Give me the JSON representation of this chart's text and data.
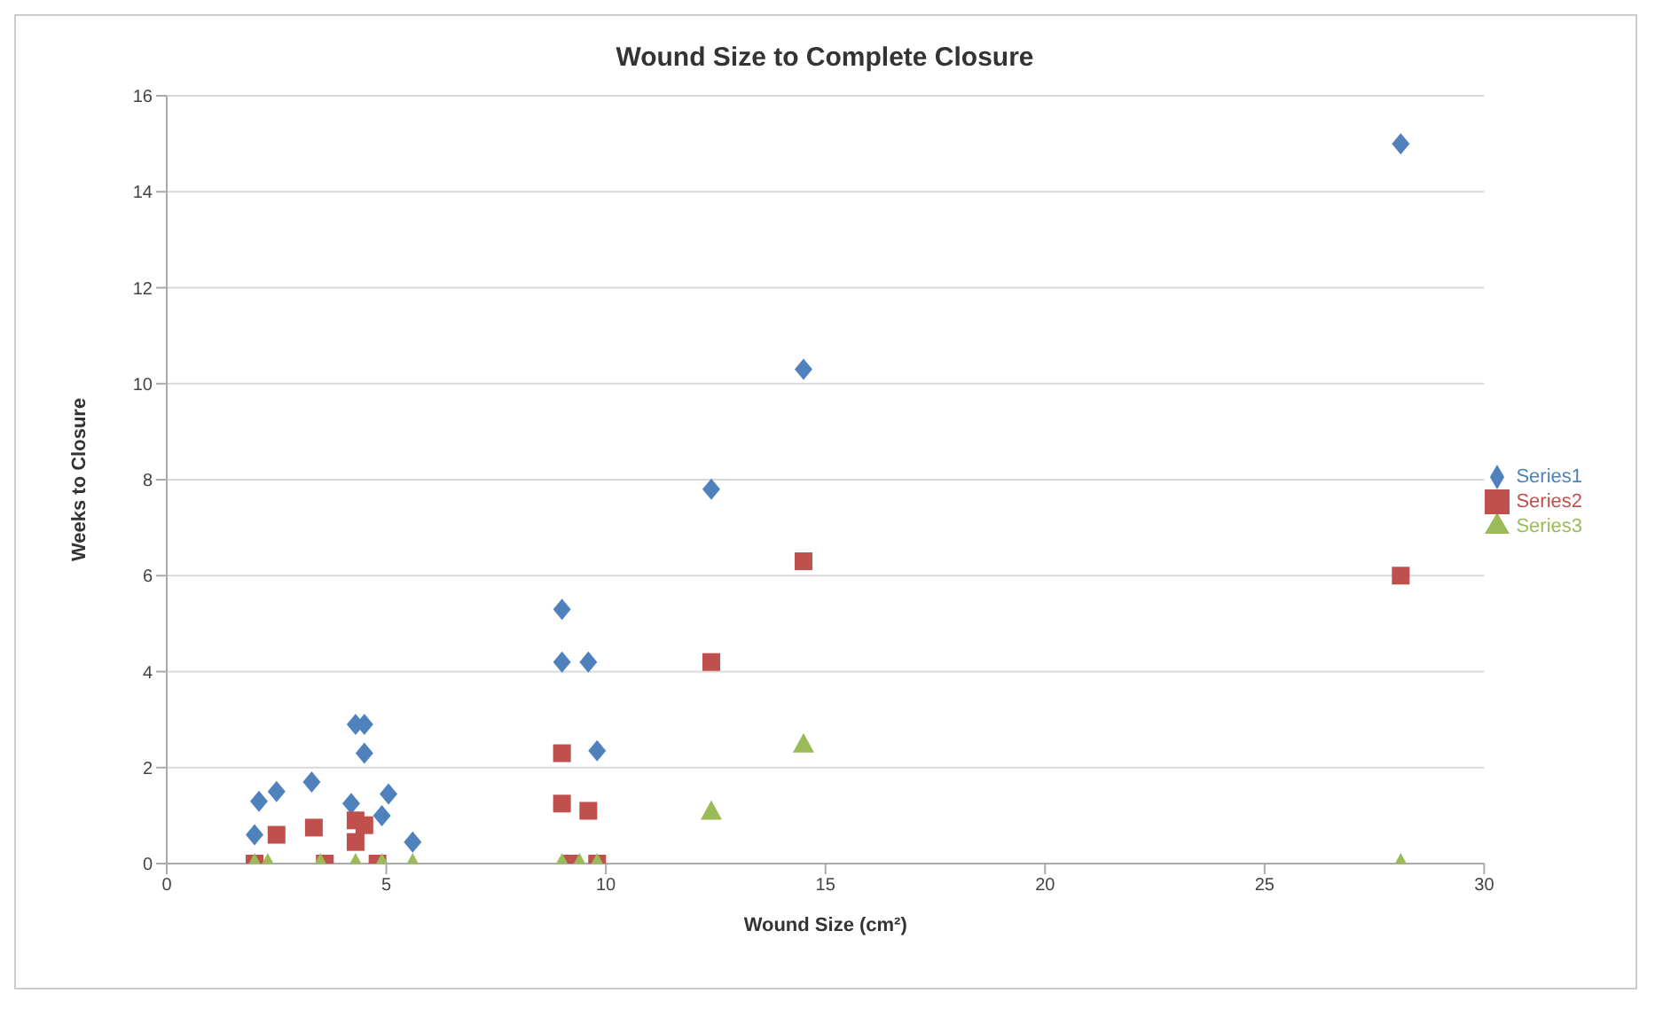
{
  "chart_data": {
    "type": "scatter",
    "title": "Wound Size to Complete Closure",
    "xlabel": "Wound Size (cm²)",
    "ylabel": "Weeks to Closure",
    "xlim": [
      0,
      30
    ],
    "xticks": [
      0,
      5,
      10,
      15,
      20,
      25,
      30
    ],
    "ylim": [
      0,
      16
    ],
    "yticks": [
      0,
      2,
      4,
      6,
      8,
      10,
      12,
      14,
      16
    ],
    "grid": "y",
    "legend": "right",
    "series": [
      {
        "name": "Series1",
        "color": "#4f81bd",
        "marker": "diamond",
        "x": [
          2.0,
          2.1,
          2.5,
          3.3,
          4.2,
          4.3,
          4.5,
          4.5,
          4.9,
          5.05,
          5.6,
          9.0,
          9.0,
          9.6,
          9.8,
          12.4,
          14.5,
          28.1
        ],
        "values": [
          0.6,
          1.3,
          1.5,
          1.7,
          1.25,
          2.9,
          2.9,
          2.3,
          1.0,
          1.45,
          0.45,
          5.3,
          4.2,
          4.2,
          2.35,
          7.8,
          10.3,
          15
        ]
      },
      {
        "name": "Series2",
        "color": "#c0504d",
        "marker": "square",
        "x": [
          2.5,
          3.35,
          4.3,
          4.5,
          4.3,
          9.0,
          9.0,
          9.6,
          12.4,
          14.5,
          28.1,
          2.0,
          3.6,
          4.8,
          9.2,
          9.8
        ],
        "values": [
          0.6,
          0.75,
          0.9,
          0.8,
          0.45,
          2.3,
          1.25,
          1.1,
          4.2,
          6.3,
          6.0,
          0,
          0,
          0,
          0,
          0
        ]
      },
      {
        "name": "Series3",
        "color": "#9bbb59",
        "marker": "triangle",
        "x": [
          2.0,
          2.3,
          3.5,
          4.3,
          4.9,
          5.6,
          9.0,
          9.4,
          9.8,
          12.4,
          14.5,
          28.1
        ],
        "values": [
          0,
          0,
          0,
          0,
          0,
          0,
          0,
          0,
          0,
          1.1,
          2.5,
          0
        ]
      }
    ]
  }
}
